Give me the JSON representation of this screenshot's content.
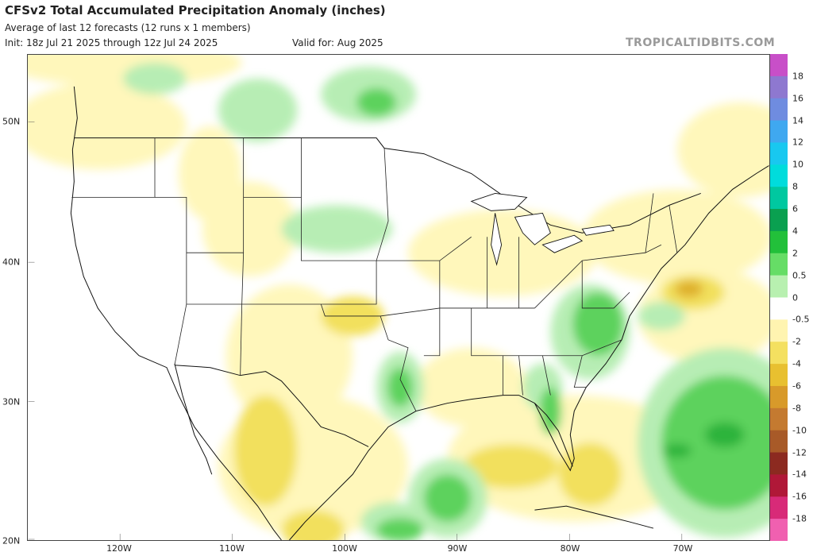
{
  "header": {
    "title": "CFSv2 Total Accumulated Precipitation Anomaly (inches)",
    "subtitle": "Average of last 12 forecasts (12 runs x 1 members)",
    "init": "Init: 18z Jul 21 2025 through 12z Jul 24 2025",
    "valid": "Valid for: Aug 2025",
    "brand": "TROPICALTIDBITS.COM"
  },
  "axes": {
    "lat_ticks": [
      "50N",
      "40N",
      "30N",
      "20N"
    ],
    "lon_ticks": [
      "120W",
      "110W",
      "100W",
      "90W",
      "80W",
      "70W"
    ]
  },
  "colorbar": {
    "levels": [
      "18",
      "16",
      "14",
      "12",
      "10",
      "8",
      "6",
      "4",
      "2",
      "0.5",
      "0",
      "-0.5",
      "-2",
      "-4",
      "-6",
      "-8",
      "-10",
      "-12",
      "-14",
      "-16",
      "-18"
    ],
    "colors": [
      "#c84fc8",
      "#8e78d0",
      "#6f8ce0",
      "#3fa8f0",
      "#18c8f0",
      "#00dcdc",
      "#00c8a0",
      "#0aa050",
      "#22c03a",
      "#66dd66",
      "#b8f0b0",
      "#ffffff",
      "#fff4b0",
      "#f4e060",
      "#e8c030",
      "#d89a2a",
      "#c47a30",
      "#a85a28",
      "#8c2a20",
      "#b01838",
      "#d82a78",
      "#f060b0"
    ]
  },
  "colors": {
    "dry_light": "#fff7b8",
    "dry_mid": "#f2df55",
    "dry_strong": "#deae20",
    "wet_light": "#b4edb0",
    "wet_mid": "#54d054",
    "wet_strong": "#22b030",
    "border": "#111111",
    "state_line": "#222222"
  }
}
